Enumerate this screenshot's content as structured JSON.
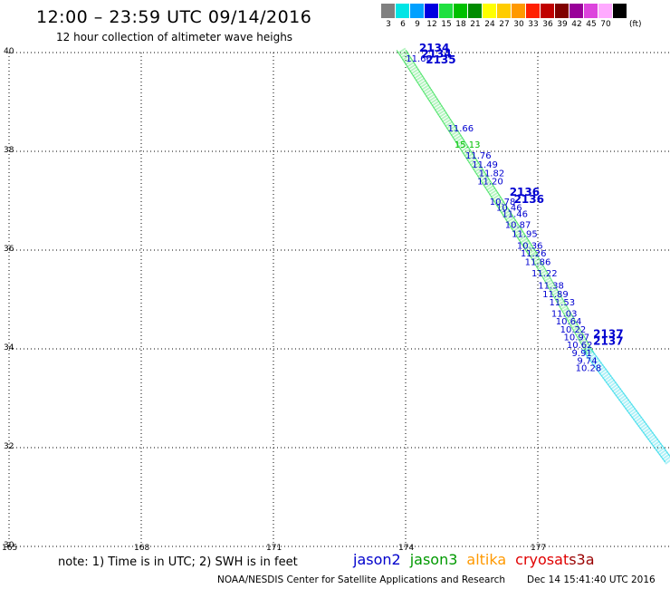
{
  "header": {
    "title": "12:00 – 23:59 UTC 09/14/2016",
    "subtitle": "12 hour collection of altimeter wave heighs"
  },
  "legend": {
    "unit": "(ft)",
    "bins": [
      {
        "label": "3",
        "color": "#808080"
      },
      {
        "label": "6",
        "color": "#00e5e5"
      },
      {
        "label": "9",
        "color": "#00a0ff"
      },
      {
        "label": "12",
        "color": "#0000e0"
      },
      {
        "label": "15",
        "color": "#20e040"
      },
      {
        "label": "18",
        "color": "#00c000"
      },
      {
        "label": "21",
        "color": "#008c00"
      },
      {
        "label": "24",
        "color": "#ffff00"
      },
      {
        "label": "27",
        "color": "#ffcc00"
      },
      {
        "label": "30",
        "color": "#ff9900"
      },
      {
        "label": "33",
        "color": "#ff2000"
      },
      {
        "label": "36",
        "color": "#c00000"
      },
      {
        "label": "39",
        "color": "#800000"
      },
      {
        "label": "42",
        "color": "#990099"
      },
      {
        "label": "45",
        "color": "#dd44dd"
      },
      {
        "label": "70",
        "color": "#ffaaff"
      },
      {
        "label": "",
        "color": "#000000"
      }
    ]
  },
  "axes": {
    "x_ticks": [
      "165",
      "168",
      "171",
      "174",
      "177"
    ],
    "y_ticks": [
      "40",
      "38",
      "36",
      "34",
      "32",
      "30"
    ]
  },
  "track": {
    "readings": [
      {
        "text": "11.66",
        "lon": 174.3,
        "lat": 39.82,
        "color": "#0000d0"
      },
      {
        "text": "11.66",
        "lon": 175.25,
        "lat": 38.4,
        "color": "#0000d0"
      },
      {
        "text": "15.13",
        "lon": 175.4,
        "lat": 38.07,
        "color": "#00c000"
      },
      {
        "text": "11.76",
        "lon": 175.65,
        "lat": 37.85,
        "color": "#0000d0"
      },
      {
        "text": "11.49",
        "lon": 175.8,
        "lat": 37.67,
        "color": "#0000d0"
      },
      {
        "text": "11.82",
        "lon": 175.95,
        "lat": 37.5,
        "color": "#0000d0"
      },
      {
        "text": "11.20",
        "lon": 175.92,
        "lat": 37.33,
        "color": "#0000d0"
      },
      {
        "text": "10.78",
        "lon": 176.2,
        "lat": 36.92,
        "color": "#0000d0"
      },
      {
        "text": "10.46",
        "lon": 176.35,
        "lat": 36.8,
        "color": "#0000d0"
      },
      {
        "text": "11.46",
        "lon": 176.48,
        "lat": 36.67,
        "color": "#0000d0"
      },
      {
        "text": "10.87",
        "lon": 176.55,
        "lat": 36.45,
        "color": "#0000d0"
      },
      {
        "text": "11.95",
        "lon": 176.7,
        "lat": 36.27,
        "color": "#0000d0"
      },
      {
        "text": "10.36",
        "lon": 176.82,
        "lat": 36.03,
        "color": "#0000d0"
      },
      {
        "text": "11.26",
        "lon": 176.9,
        "lat": 35.87,
        "color": "#0000d0"
      },
      {
        "text": "11.86",
        "lon": 177.0,
        "lat": 35.7,
        "color": "#0000d0"
      },
      {
        "text": "11.22",
        "lon": 177.15,
        "lat": 35.47,
        "color": "#0000d0"
      },
      {
        "text": "11.38",
        "lon": 177.3,
        "lat": 35.22,
        "color": "#0000d0"
      },
      {
        "text": "11.89",
        "lon": 177.4,
        "lat": 35.05,
        "color": "#0000d0"
      },
      {
        "text": "11.53",
        "lon": 177.55,
        "lat": 34.88,
        "color": "#0000d0"
      },
      {
        "text": "11.03",
        "lon": 177.6,
        "lat": 34.65,
        "color": "#0000d0"
      },
      {
        "text": "10.64",
        "lon": 177.7,
        "lat": 34.5,
        "color": "#0000d0"
      },
      {
        "text": "10.22",
        "lon": 177.8,
        "lat": 34.33,
        "color": "#0000d0"
      },
      {
        "text": "10.97",
        "lon": 177.88,
        "lat": 34.17,
        "color": "#0000d0"
      },
      {
        "text": "10.62",
        "lon": 177.95,
        "lat": 34.02,
        "color": "#0000d0"
      },
      {
        "text": "9.91",
        "lon": 178.0,
        "lat": 33.85,
        "color": "#0000d0"
      },
      {
        "text": "9.74",
        "lon": 178.12,
        "lat": 33.7,
        "color": "#0000d0"
      },
      {
        "text": "10.28",
        "lon": 178.15,
        "lat": 33.55,
        "color": "#0000d0"
      }
    ],
    "pass_labels": [
      {
        "text": "2134",
        "lon": 174.65,
        "lat": 40.02
      },
      {
        "text": "2134",
        "lon": 174.7,
        "lat": 39.9
      },
      {
        "text": "2135",
        "lon": 174.8,
        "lat": 39.78
      },
      {
        "text": "2136",
        "lon": 176.7,
        "lat": 37.1
      },
      {
        "text": "2136",
        "lon": 176.8,
        "lat": 36.95
      },
      {
        "text": "2137",
        "lon": 178.6,
        "lat": 34.23
      },
      {
        "text": "2137",
        "lon": 178.6,
        "lat": 34.08
      }
    ]
  },
  "footer": {
    "note": "note: 1) Time is in UTC; 2) SWH is in feet",
    "satellites": [
      {
        "name": "jason2",
        "color": "#0000cc"
      },
      {
        "name": "jason3",
        "color": "#009900"
      },
      {
        "name": "altika",
        "color": "#ff9900"
      },
      {
        "name": "cryosat",
        "color": "#e00000"
      },
      {
        "name": "s3a",
        "color": "#990000"
      }
    ],
    "credit": "NOAA/NESDIS Center for Satellite Applications and Research",
    "timestamp": "Dec 14 15:41:40 UTC 2016"
  }
}
